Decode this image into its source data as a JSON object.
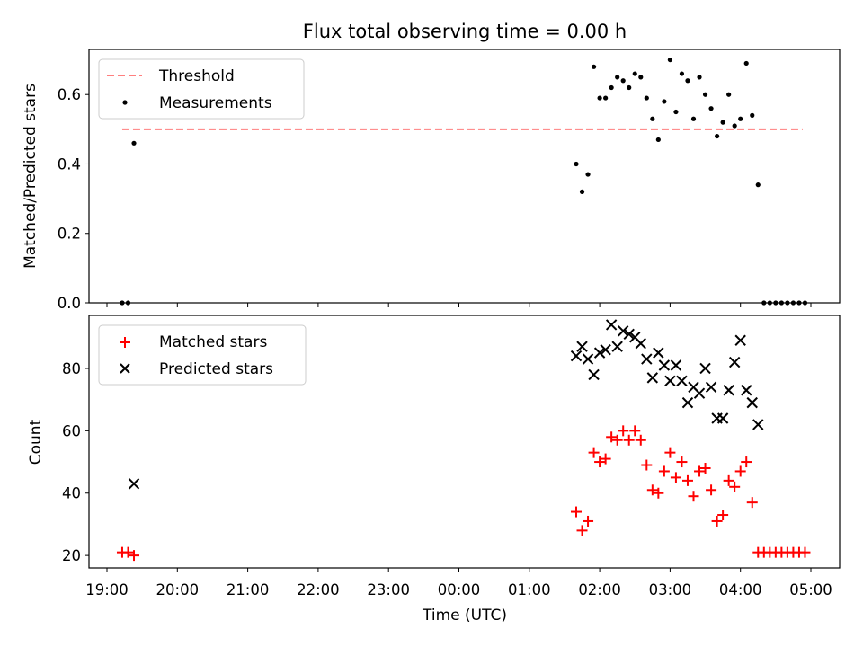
{
  "chart_data": [
    {
      "type": "scatter",
      "title": "Flux total observing time = 0.00 h",
      "ylabel": "Matched/Predicted stars",
      "xlabel": "",
      "xlim": [
        "19:00",
        "05:00"
      ],
      "ylim": [
        0,
        0.73
      ],
      "yticks": [
        "0.0",
        "0.2",
        "0.4",
        "0.6"
      ],
      "legend": "top-left",
      "threshold": {
        "name": "Threshold",
        "value": 0.5,
        "x_start": "19:13",
        "x_end": "04:53",
        "color": "#ff7f7f"
      },
      "series": [
        {
          "name": "Measurements",
          "color": "#000000",
          "x": [
            "19:13",
            "19:18",
            "19:23",
            "01:40",
            "01:45",
            "01:50",
            "01:55",
            "02:00",
            "02:05",
            "02:10",
            "02:15",
            "02:20",
            "02:25",
            "02:30",
            "02:35",
            "02:40",
            "02:45",
            "02:50",
            "02:55",
            "03:00",
            "03:05",
            "03:10",
            "03:15",
            "03:20",
            "03:25",
            "03:30",
            "03:35",
            "03:40",
            "03:45",
            "03:50",
            "03:55",
            "04:00",
            "04:05",
            "04:10",
            "04:15",
            "04:20",
            "04:25",
            "04:30",
            "04:35",
            "04:40",
            "04:45",
            "04:50",
            "04:55"
          ],
          "y": [
            0.0,
            0.0,
            0.46,
            0.4,
            0.32,
            0.37,
            0.68,
            0.59,
            0.59,
            0.62,
            0.65,
            0.64,
            0.62,
            0.66,
            0.65,
            0.59,
            0.53,
            0.47,
            0.58,
            0.7,
            0.55,
            0.66,
            0.64,
            0.53,
            0.65,
            0.6,
            0.56,
            0.48,
            0.52,
            0.6,
            0.51,
            0.53,
            0.69,
            0.54,
            0.34,
            0.0,
            0.0,
            0.0,
            0.0,
            0.0,
            0.0,
            0.0,
            0.0
          ]
        }
      ]
    },
    {
      "type": "scatter",
      "title": "",
      "ylabel": "Count",
      "xlabel": "Time (UTC)",
      "xlim": [
        "19:00",
        "05:00"
      ],
      "ylim": [
        16,
        97
      ],
      "yticks": [
        "20",
        "40",
        "60",
        "80"
      ],
      "xticks": [
        "19:00",
        "20:00",
        "21:00",
        "22:00",
        "23:00",
        "00:00",
        "01:00",
        "02:00",
        "03:00",
        "04:00",
        "05:00"
      ],
      "legend": "top-left",
      "series": [
        {
          "name": "Matched stars",
          "color": "#ff0000",
          "marker": "+",
          "x": [
            "19:13",
            "19:18",
            "19:23",
            "01:40",
            "01:45",
            "01:50",
            "01:55",
            "02:00",
            "02:05",
            "02:10",
            "02:15",
            "02:20",
            "02:25",
            "02:30",
            "02:35",
            "02:40",
            "02:45",
            "02:50",
            "02:55",
            "03:00",
            "03:05",
            "03:10",
            "03:15",
            "03:20",
            "03:25",
            "03:30",
            "03:35",
            "03:40",
            "03:45",
            "03:50",
            "03:55",
            "04:00",
            "04:05",
            "04:10",
            "04:15",
            "04:20",
            "04:25",
            "04:30",
            "04:35",
            "04:40",
            "04:45",
            "04:50",
            "04:55"
          ],
          "y": [
            21,
            21,
            20,
            34,
            28,
            31,
            53,
            50,
            51,
            58,
            57,
            60,
            57,
            60,
            57,
            49,
            41,
            40,
            47,
            53,
            45,
            50,
            44,
            39,
            47,
            48,
            41,
            31,
            33,
            44,
            42,
            47,
            50,
            37,
            21,
            21,
            21,
            21,
            21,
            21,
            21,
            21,
            21
          ]
        },
        {
          "name": "Predicted stars",
          "color": "#000000",
          "marker": "x",
          "x": [
            "19:23",
            "01:40",
            "01:45",
            "01:50",
            "01:55",
            "02:00",
            "02:05",
            "02:10",
            "02:15",
            "02:20",
            "02:25",
            "02:30",
            "02:35",
            "02:40",
            "02:45",
            "02:50",
            "02:55",
            "03:00",
            "03:05",
            "03:10",
            "03:15",
            "03:20",
            "03:25",
            "03:30",
            "03:35",
            "03:40",
            "03:45",
            "03:50",
            "03:55",
            "04:00",
            "04:05",
            "04:10",
            "04:15"
          ],
          "y": [
            43,
            84,
            87,
            83,
            78,
            85,
            86,
            94,
            87,
            92,
            91,
            90,
            88,
            83,
            77,
            85,
            81,
            76,
            81,
            76,
            69,
            74,
            72,
            80,
            74,
            64,
            64,
            73,
            82,
            89,
            73,
            69,
            62
          ]
        }
      ]
    }
  ]
}
